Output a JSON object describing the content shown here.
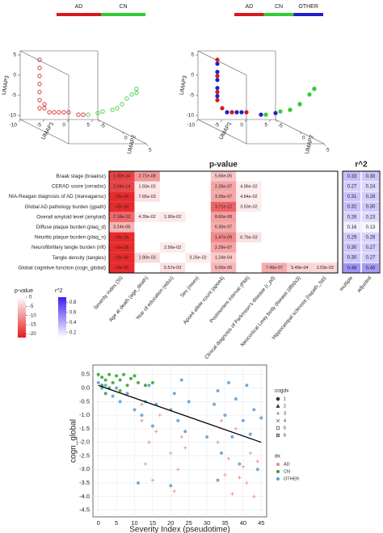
{
  "chart_data": [
    {
      "type": "scatter3d",
      "legend": {
        "categories": [
          "AD",
          "CN"
        ],
        "colors": [
          "#d7191c",
          "#33cc33"
        ]
      },
      "xlabel": "UMAP1",
      "ylabel": "UMAP2",
      "zlabel": "UMAP3",
      "xlim": [
        -10,
        6
      ],
      "ylim": [
        -5,
        5
      ],
      "zlim": [
        -11,
        6
      ],
      "xticks": [
        -10,
        -5,
        0,
        5
      ],
      "yticks": [
        -5,
        0,
        5
      ],
      "zticks": [
        -10,
        -5,
        0,
        5
      ],
      "series": [
        {
          "name": "AD",
          "color": "#d7191c",
          "x": [
            -8,
            -8,
            -8,
            -8,
            -8,
            -8,
            -7,
            -6,
            -5,
            -4,
            -3,
            -2,
            -1,
            0,
            -7,
            -8
          ],
          "y": [
            -3,
            -3,
            -3,
            -3,
            -3,
            -3,
            -3,
            -3,
            -3,
            -3,
            -3,
            -3,
            -2,
            -2,
            -3,
            -3
          ],
          "z": [
            5,
            3,
            1,
            -1,
            -3,
            -5,
            -7,
            -8,
            -8,
            -8,
            -8,
            -8,
            -8,
            -8,
            -6,
            -7
          ]
        },
        {
          "name": "CN",
          "color": "#33cc33",
          "x": [
            1,
            2,
            2,
            3,
            3,
            4,
            4,
            5,
            5,
            5
          ],
          "y": [
            -2,
            -1,
            0,
            1,
            2,
            2,
            3,
            3,
            4,
            4
          ],
          "z": [
            -8,
            -7,
            -6,
            -5,
            -4,
            -3,
            -1,
            0,
            1,
            2
          ]
        }
      ]
    },
    {
      "type": "scatter3d",
      "legend": {
        "categories": [
          "AD",
          "CN",
          "OTHER"
        ],
        "colors": [
          "#d7191c",
          "#33cc33",
          "#2020cc"
        ]
      },
      "xlabel": "UMAP1",
      "ylabel": "UMAP2",
      "zlabel": "UMAP3",
      "xlim": [
        -10,
        6
      ],
      "ylim": [
        -5,
        5
      ],
      "zlim": [
        -11,
        6
      ],
      "xticks": [
        -10,
        -5,
        0,
        5
      ],
      "yticks": [
        -5,
        0,
        5
      ],
      "zticks": [
        -10,
        -5,
        0,
        5
      ],
      "series": [
        {
          "name": "OTHER",
          "color": "#2020cc",
          "x": [
            -8,
            -8,
            -8,
            -6,
            -3,
            0,
            2,
            3,
            4,
            5,
            -8,
            -5,
            -8,
            -4
          ],
          "y": [
            -3,
            -3,
            -3,
            -3,
            -3,
            -2,
            -1,
            1,
            2,
            4,
            -3,
            -3,
            -3,
            -3
          ],
          "z": [
            4,
            0,
            -4,
            -8,
            -8,
            -8,
            -7,
            -5,
            -3,
            2,
            2,
            -8,
            -2,
            -8
          ]
        },
        {
          "name": "AD",
          "color": "#d7191c",
          "x": [
            -8,
            -8,
            -8,
            -7,
            -5,
            -2,
            -8
          ],
          "y": [
            -3,
            -3,
            -3,
            -3,
            -3,
            -3,
            -3
          ],
          "z": [
            5,
            1,
            -3,
            -7,
            -8,
            -8,
            -5
          ]
        },
        {
          "name": "CN",
          "color": "#33cc33",
          "x": [
            1,
            2,
            3,
            4,
            5,
            5
          ],
          "y": [
            -2,
            0,
            1,
            2,
            3,
            4
          ],
          "z": [
            -8,
            -6,
            -5,
            -3,
            0,
            2
          ]
        }
      ]
    },
    {
      "type": "heatmap",
      "title": "p-value",
      "r2_title": "r^2",
      "rows": [
        "Braak stage (braaksc)",
        "CERAD score (ceradsc)",
        "NIA-Reagan diagnosis of AD (niareagansc)",
        "Global AD pathology burden (gpath)",
        "Overall amyloid level (amyloid)",
        "Diffuse plaque burden (plaq_d)",
        "Neuritic plaque burden (plaq_n)",
        "Neurofibrillary tangle burden (nft)",
        "Tangle density (tangles)",
        "Global cognitive function (cogn_global)"
      ],
      "columns": [
        "Severity Index (SI)",
        "Age at death (age_death)",
        "Year of education (educ)",
        "Sex (msex)",
        "Apoe4 allele count (apoe4)",
        "Postmortem interval (PMI)",
        "Clinical diagnosis of Parkinson's disease (r_pd)",
        "Neocortical Lewy body disease (dlbdx3)",
        "Hippocampal sclerosis (hspath_typ)"
      ],
      "values": [
        [
          1e-14,
          2.71e-08,
          null,
          null,
          5.66e-05,
          null,
          null,
          null,
          null
        ],
        [
          2.04e-14,
          0.015,
          null,
          null,
          2.28e-07,
          0.0496,
          null,
          null,
          null
        ],
        [
          2e-16,
          0.00765,
          null,
          null,
          3.26e-07,
          0.0484,
          null,
          null,
          null
        ],
        [
          2e-16,
          null,
          null,
          null,
          3.71e-12,
          0.0363,
          null,
          null,
          null
        ],
        [
          7.16e-12,
          0.0439,
          0.019,
          null,
          8.6e-08,
          null,
          null,
          null,
          null
        ],
        [
          3.24e-06,
          null,
          null,
          null,
          6.3e-07,
          null,
          null,
          null,
          null
        ],
        [
          2e-16,
          null,
          null,
          null,
          1.47e-09,
          0.00676,
          null,
          null,
          null
        ],
        [
          2e-16,
          null,
          0.0256,
          null,
          2.29e-07,
          null,
          null,
          null,
          null
        ],
        [
          2e-16,
          0.0019,
          null,
          0.0326,
          0.000124,
          null,
          null,
          null,
          null
        ],
        [
          2e-16,
          null,
          0.00557,
          null,
          5e-06,
          null,
          7.49e-07,
          0.000549,
          0.00103
        ]
      ],
      "value_labels": [
        [
          "1.00e-14",
          "2.71e-08",
          null,
          null,
          "5.66e-05",
          null,
          null,
          null,
          null
        ],
        [
          "2.04e-14",
          "1.50e-02",
          null,
          null,
          "2.28e-07",
          "4.96e-02",
          null,
          null,
          null
        ],
        [
          "<2e-16",
          "7.65e-03",
          null,
          null,
          "3.26e-07",
          "4.84e-02",
          null,
          null,
          null
        ],
        [
          "<2e-16",
          null,
          null,
          null,
          "3.71e-12",
          "3.63e-02",
          null,
          null,
          null
        ],
        [
          "7.16e-12",
          "4.39e-02",
          "1.90e-02",
          null,
          "8.60e-08",
          null,
          null,
          null,
          null
        ],
        [
          "3.24e-06",
          null,
          null,
          null,
          "6.30e-07",
          null,
          null,
          null,
          null
        ],
        [
          "<2e-16",
          null,
          null,
          null,
          "1.47e-09",
          "6.76e-03",
          null,
          null,
          null
        ],
        [
          "<2e-16",
          null,
          "2.56e-02",
          null,
          "2.29e-07",
          null,
          null,
          null,
          null
        ],
        [
          "<2e-16",
          "1.90e-03",
          null,
          "3.26e-02",
          "1.24e-04",
          null,
          null,
          null,
          null
        ],
        [
          "<2e-16",
          null,
          "5.57e-03",
          null,
          "5.00e-06",
          null,
          "7.49e-07",
          "5.49e-04",
          "1.03e-03"
        ]
      ],
      "r2_columns": [
        "multiple",
        "adjusted"
      ],
      "r2_values": [
        [
          0.33,
          0.3
        ],
        [
          0.27,
          0.24
        ],
        [
          0.31,
          0.28
        ],
        [
          0.32,
          0.3
        ],
        [
          0.26,
          0.23
        ],
        [
          0.16,
          0.13
        ],
        [
          0.29,
          0.26
        ],
        [
          0.3,
          0.27
        ],
        [
          0.3,
          0.27
        ],
        [
          0.48,
          0.46
        ]
      ],
      "r2_value_labels": [
        [
          "0.33",
          "0.30"
        ],
        [
          "0.27",
          "0.24"
        ],
        [
          "0.31",
          "0.28"
        ],
        [
          "0.32",
          "0.30"
        ],
        [
          "0.26",
          "0.23"
        ],
        [
          "0.16",
          "0.13"
        ],
        [
          "0.29",
          "0.26"
        ],
        [
          "0.30",
          "0.27"
        ],
        [
          "0.30",
          "0.27"
        ],
        [
          "0.48",
          "0.46"
        ]
      ],
      "p_legend": {
        "title": "p-value",
        "lim": [
          0,
          -22
        ],
        "ticks": [
          0,
          -5,
          -10,
          -15,
          -20
        ],
        "low": "#ffffff",
        "high": "#e41a1c"
      },
      "r2_legend": {
        "title": "r^2",
        "lim": [
          0.1,
          0.9
        ],
        "ticks": [
          0.8,
          0.6,
          0.4,
          0.2
        ],
        "low": "#ffffff",
        "high": "#3a1ef0"
      }
    },
    {
      "type": "scatter",
      "xlabel": "Severity Index (pseudotime)",
      "ylabel": "cogn_global",
      "grid": true,
      "xlim": [
        -1.5,
        46.5
      ],
      "ylim": [
        -4.75,
        0.85
      ],
      "xticks": [
        0,
        5,
        10,
        15,
        20,
        25,
        30,
        35,
        40,
        45
      ],
      "yticks": [
        0.5,
        {
          "value": 0,
          "label": "0.0"
        },
        -0.5,
        {
          "value": -1,
          "label": "-1.0"
        },
        -1.5,
        {
          "value": -2,
          "label": "-2.0"
        },
        -2.5,
        {
          "value": -3,
          "label": "-3.0"
        },
        -3.5,
        {
          "value": -4,
          "label": "-4.0"
        },
        -4.5
      ],
      "fit": {
        "x": [
          0,
          45
        ],
        "y": [
          0.1,
          -2.0
        ]
      },
      "cogdx_legend": {
        "title": "cogdx",
        "labels": [
          "1",
          "2",
          "3",
          "4",
          "5",
          "6"
        ]
      },
      "dx_legend": {
        "title": "dx"
      },
      "series": [
        {
          "name": "AD",
          "color": "#f08080",
          "marker": "plus",
          "x": [
            12,
            14,
            15,
            13,
            16,
            20,
            22,
            23,
            21,
            24,
            33,
            35,
            36,
            37,
            38,
            40,
            41,
            42,
            43,
            39,
            44,
            34,
            12,
            17
          ],
          "y": [
            -1.2,
            -2.0,
            -3.4,
            -2.8,
            -1.6,
            -2.4,
            -3.0,
            -1.8,
            -3.8,
            -2.2,
            -2.0,
            -3.2,
            -2.6,
            -3.9,
            -1.5,
            -2.9,
            -3.5,
            -2.4,
            -4.0,
            -3.3,
            -2.7,
            -1.2,
            -0.6,
            -1.0
          ]
        },
        {
          "name": "CN",
          "color": "#2ca02c",
          "marker": "circle",
          "x": [
            0,
            1,
            2,
            3,
            4,
            5,
            6,
            7,
            8,
            9,
            10,
            1,
            3,
            11,
            13,
            6,
            15,
            2
          ],
          "y": [
            0.5,
            0.4,
            0.3,
            0.5,
            0.2,
            0.45,
            0.3,
            0.5,
            0.1,
            0.35,
            0.45,
            0.1,
            0.0,
            0.2,
            0.1,
            -0.1,
            0.2,
            -0.2
          ]
        },
        {
          "name": "OTHER",
          "color": "#5b9bd5",
          "marker": "circle",
          "x": [
            0,
            1,
            2,
            4,
            5,
            6,
            8,
            10,
            12,
            13,
            14,
            15,
            16,
            11,
            20,
            21,
            22,
            23,
            24,
            25,
            20,
            30,
            32,
            33,
            34,
            35,
            36,
            37,
            38,
            39,
            40,
            41,
            42,
            43,
            44,
            45,
            33
          ],
          "y": [
            0.2,
            0,
            0.1,
            -0.3,
            0,
            -0.5,
            -0.2,
            -0.8,
            -1.0,
            -0.5,
            0.1,
            -1.4,
            -0.6,
            -3.5,
            -0.8,
            -0.2,
            -1.2,
            0.3,
            -1.6,
            -0.5,
            -3.6,
            -1.8,
            -0.6,
            -0.1,
            -2.4,
            -1.0,
            0.2,
            -1.8,
            -0.4,
            -2.8,
            -1.2,
            0.1,
            -1.7,
            -0.8,
            -3.0,
            -1.1,
            -3.4
          ]
        }
      ]
    }
  ]
}
